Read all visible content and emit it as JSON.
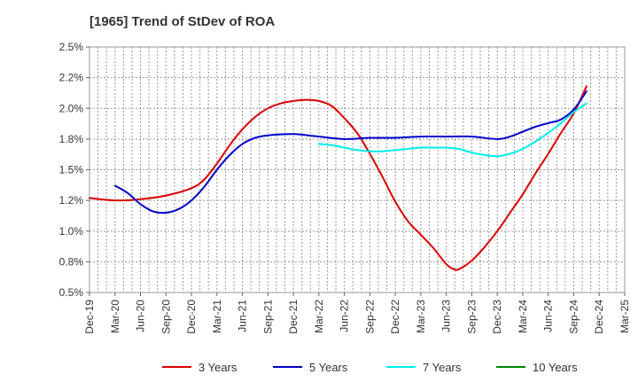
{
  "title": "[1965]  Trend of StDev of ROA",
  "chart_data": {
    "type": "line",
    "title": "[1965]  Trend of StDev of ROA",
    "xlabel": "",
    "ylabel": "",
    "x_ticks": [
      "Dec-19",
      "Mar-20",
      "Jun-20",
      "Sep-20",
      "Dec-20",
      "Mar-21",
      "Jun-21",
      "Sep-21",
      "Dec-21",
      "Mar-22",
      "Jun-22",
      "Sep-22",
      "Dec-22",
      "Mar-23",
      "Jun-23",
      "Sep-23",
      "Dec-23",
      "Mar-24",
      "Jun-24",
      "Sep-24",
      "Dec-24",
      "Mar-25"
    ],
    "y_ticks": [
      "0.5%",
      "0.8%",
      "1.0%",
      "1.2%",
      "1.5%",
      "1.8%",
      "2.0%",
      "2.2%",
      "2.5%"
    ],
    "ylim": [
      0.5,
      2.5
    ],
    "y_unit": "%",
    "grid": true,
    "legend_position": "bottom",
    "series": [
      {
        "name": "3 Years",
        "color": "#dd0000",
        "points": [
          [
            0,
            1.27
          ],
          [
            1,
            1.25
          ],
          [
            2,
            1.26
          ],
          [
            3,
            1.29
          ],
          [
            4,
            1.35
          ],
          [
            4.5,
            1.42
          ],
          [
            5,
            1.55
          ],
          [
            5.5,
            1.7
          ],
          [
            6,
            1.83
          ],
          [
            6.5,
            1.93
          ],
          [
            7,
            2.0
          ],
          [
            7.5,
            2.04
          ],
          [
            8,
            2.06
          ],
          [
            8.5,
            2.07
          ],
          [
            9,
            2.06
          ],
          [
            9.5,
            2.02
          ],
          [
            10,
            1.92
          ],
          [
            10.5,
            1.8
          ],
          [
            11,
            1.63
          ],
          [
            11.5,
            1.44
          ],
          [
            12,
            1.24
          ],
          [
            12.5,
            1.08
          ],
          [
            13,
            0.97
          ],
          [
            13.5,
            0.86
          ],
          [
            14,
            0.73
          ],
          [
            14.3,
            0.69
          ],
          [
            14.5,
            0.69
          ],
          [
            15,
            0.76
          ],
          [
            15.5,
            0.87
          ],
          [
            16,
            1.0
          ],
          [
            16.5,
            1.15
          ],
          [
            17,
            1.3
          ],
          [
            17.5,
            1.47
          ],
          [
            18,
            1.63
          ],
          [
            18.5,
            1.8
          ],
          [
            19,
            1.96
          ],
          [
            19.5,
            2.18
          ]
        ]
      },
      {
        "name": "5 Years",
        "color": "#0000cc",
        "points": [
          [
            1,
            1.37
          ],
          [
            1.5,
            1.31
          ],
          [
            2,
            1.22
          ],
          [
            2.5,
            1.16
          ],
          [
            3,
            1.15
          ],
          [
            3.5,
            1.18
          ],
          [
            4,
            1.25
          ],
          [
            4.5,
            1.36
          ],
          [
            5,
            1.5
          ],
          [
            5.5,
            1.62
          ],
          [
            6,
            1.71
          ],
          [
            6.5,
            1.76
          ],
          [
            7,
            1.78
          ],
          [
            8,
            1.79
          ],
          [
            9,
            1.77
          ],
          [
            10,
            1.75
          ],
          [
            11,
            1.76
          ],
          [
            12,
            1.76
          ],
          [
            13,
            1.77
          ],
          [
            14,
            1.77
          ],
          [
            15,
            1.77
          ],
          [
            16,
            1.75
          ],
          [
            16.5,
            1.77
          ],
          [
            17,
            1.81
          ],
          [
            17.5,
            1.85
          ],
          [
            18,
            1.88
          ],
          [
            18.5,
            1.91
          ],
          [
            19,
            1.99
          ],
          [
            19.5,
            2.14
          ]
        ]
      },
      {
        "name": "7 Years",
        "color": "#00eeee",
        "points": [
          [
            9,
            1.71
          ],
          [
            9.5,
            1.7
          ],
          [
            10,
            1.68
          ],
          [
            10.5,
            1.66
          ],
          [
            11,
            1.65
          ],
          [
            11.5,
            1.65
          ],
          [
            12,
            1.66
          ],
          [
            12.5,
            1.67
          ],
          [
            13,
            1.68
          ],
          [
            13.5,
            1.68
          ],
          [
            14,
            1.68
          ],
          [
            14.5,
            1.67
          ],
          [
            15,
            1.64
          ],
          [
            15.5,
            1.62
          ],
          [
            16,
            1.61
          ],
          [
            16.5,
            1.63
          ],
          [
            17,
            1.67
          ],
          [
            17.5,
            1.73
          ],
          [
            18,
            1.8
          ],
          [
            18.5,
            1.88
          ],
          [
            19,
            1.97
          ],
          [
            19.5,
            2.04
          ]
        ]
      },
      {
        "name": "10 Years",
        "color": "#008800",
        "points": []
      }
    ]
  }
}
